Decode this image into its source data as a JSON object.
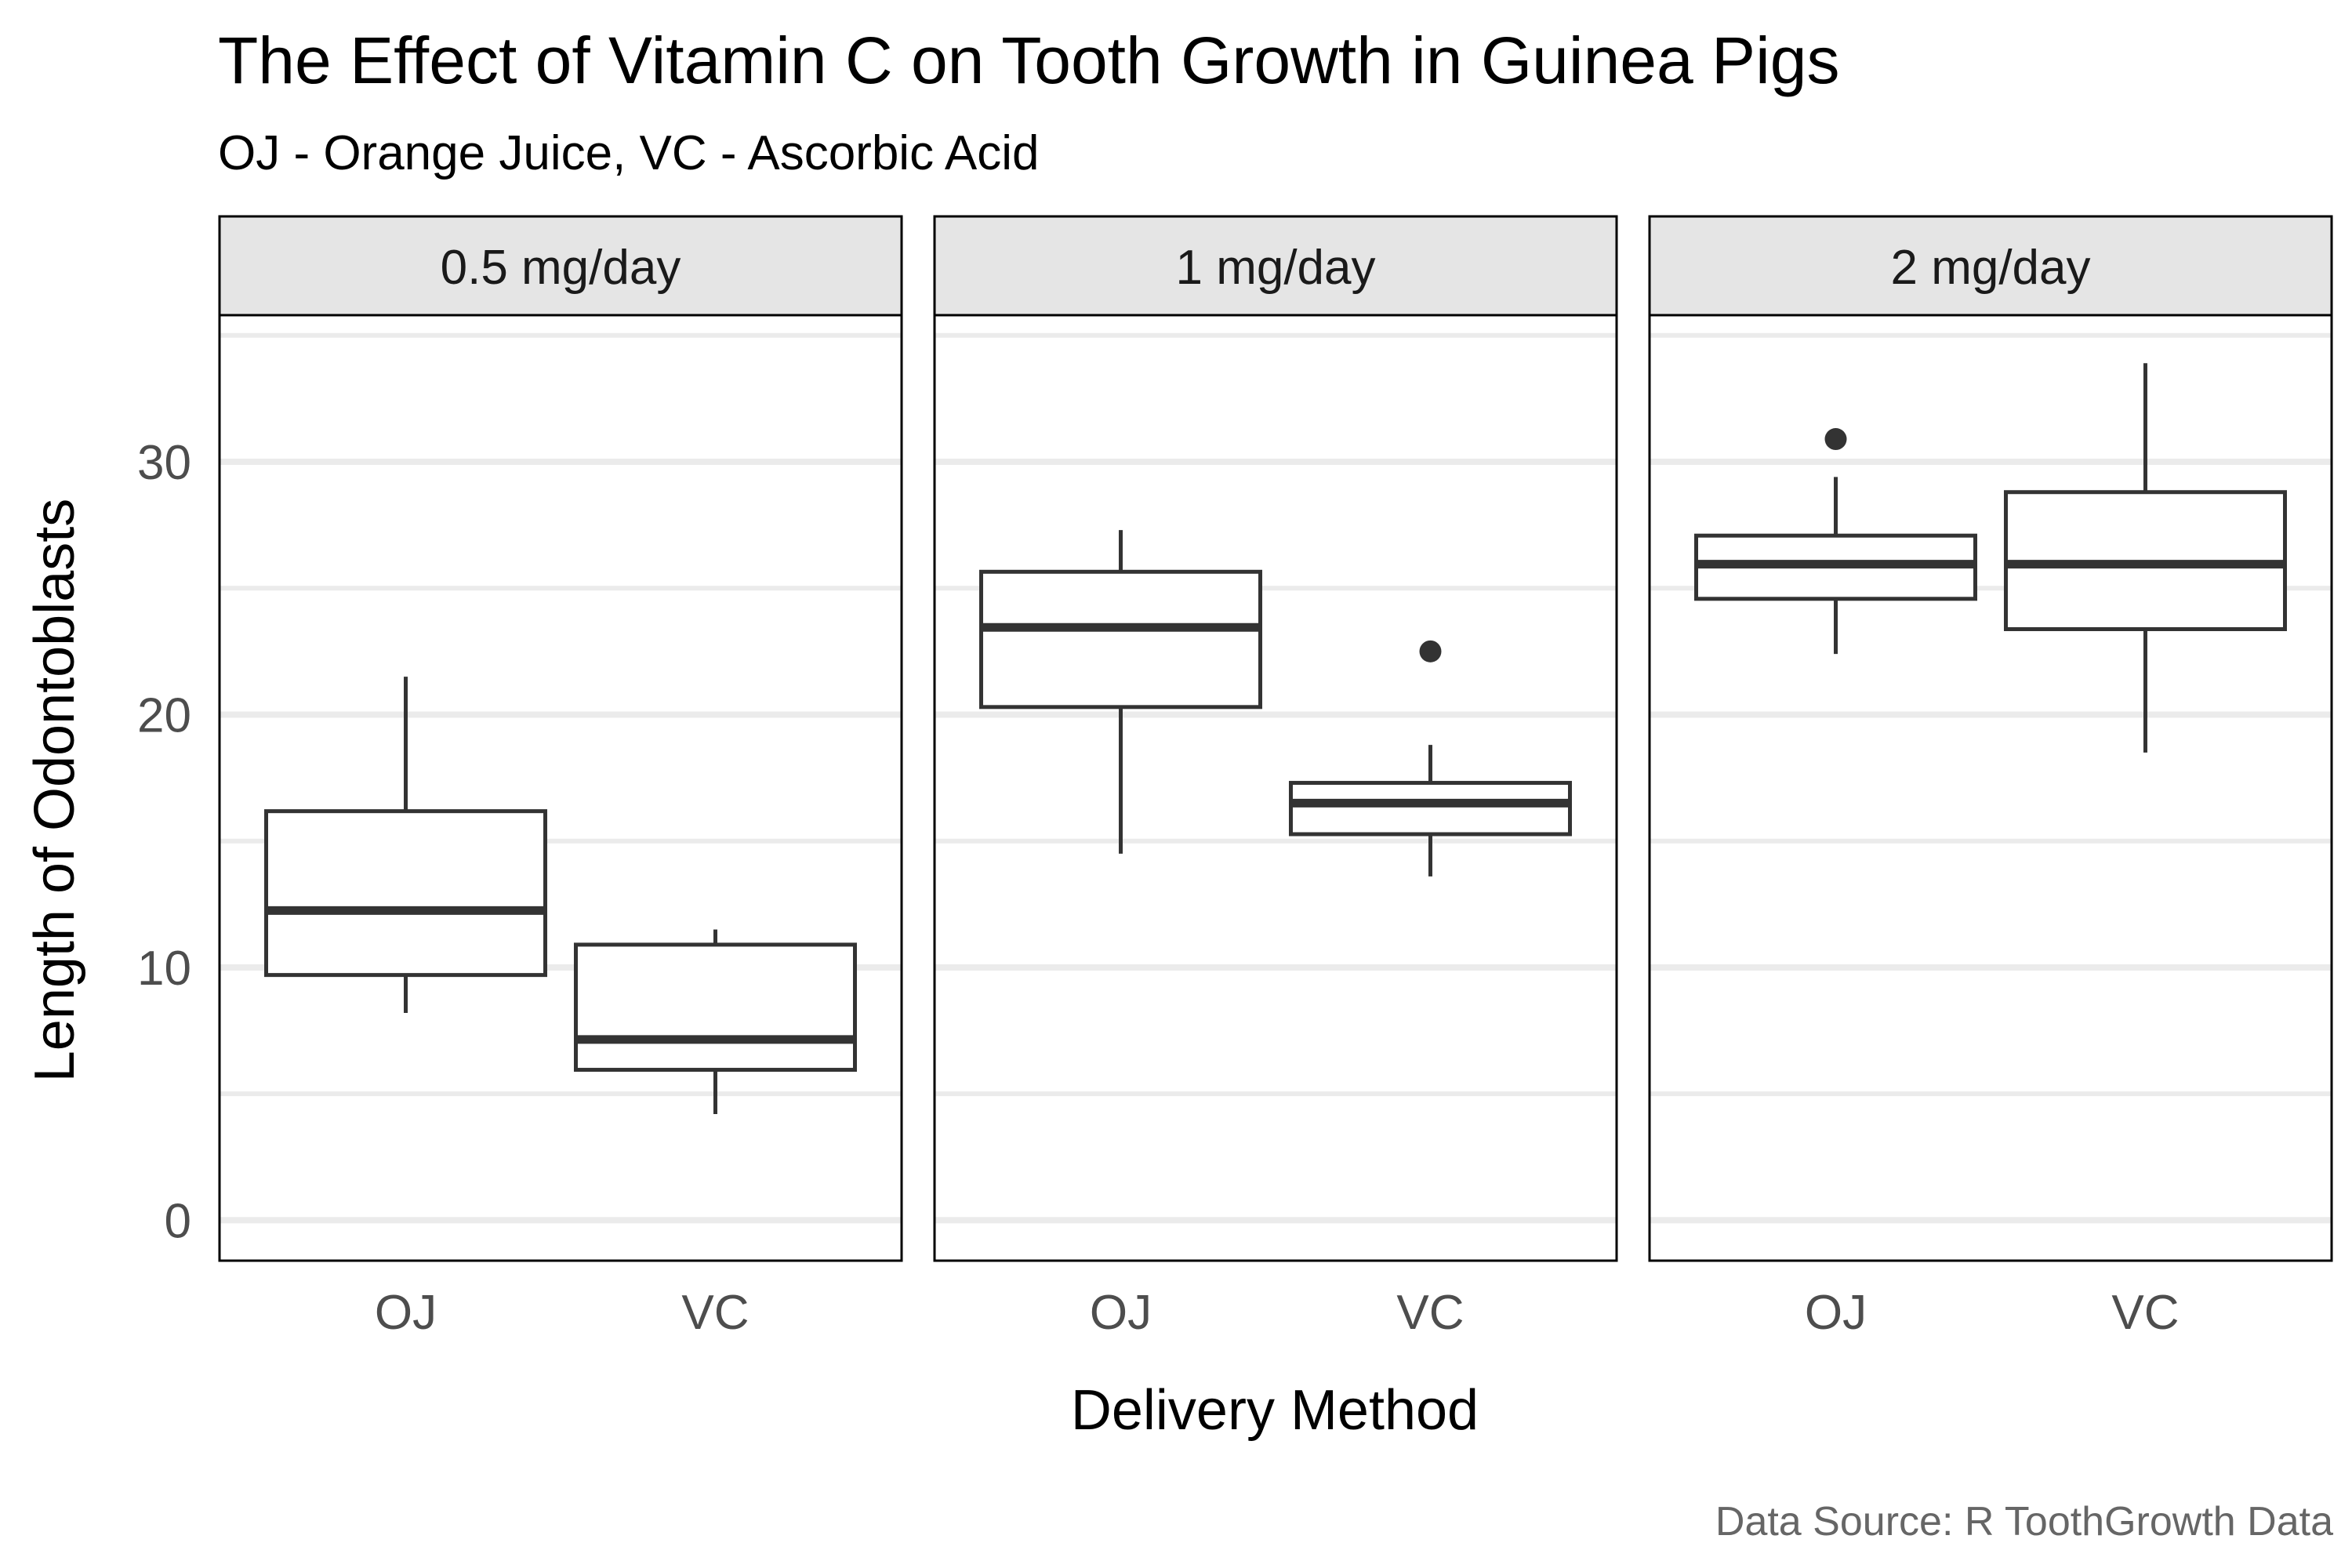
{
  "chart_data": {
    "type": "boxplot",
    "title": "The Effect of Vitamin C on Tooth Growth in Guinea Pigs",
    "subtitle": "OJ - Orange Juice, VC - Ascorbic Acid",
    "caption": "Data Source: R ToothGrowth Data",
    "xlabel": "Delivery Method",
    "ylabel": "Length of Odontoblasts",
    "ylim": [
      -1.6,
      35.8
    ],
    "yticks": [
      0,
      10,
      20,
      30
    ],
    "categories": [
      "OJ",
      "VC"
    ],
    "grid": "horizontal",
    "panels": [
      {
        "label": "0.5 mg/day",
        "boxes": [
          {
            "category": "OJ",
            "whisker_low": 8.2,
            "q1": 9.7,
            "median": 12.25,
            "q3": 16.18,
            "whisker_high": 21.5,
            "outliers": []
          },
          {
            "category": "VC",
            "whisker_low": 4.2,
            "q1": 5.95,
            "median": 7.15,
            "q3": 10.9,
            "whisker_high": 11.5,
            "outliers": []
          }
        ]
      },
      {
        "label": "1 mg/day",
        "boxes": [
          {
            "category": "OJ",
            "whisker_low": 14.5,
            "q1": 20.3,
            "median": 23.45,
            "q3": 25.65,
            "whisker_high": 27.3,
            "outliers": []
          },
          {
            "category": "VC",
            "whisker_low": 13.6,
            "q1": 15.27,
            "median": 16.5,
            "q3": 17.3,
            "whisker_high": 18.8,
            "outliers": [
              22.5
            ]
          }
        ]
      },
      {
        "label": "2 mg/day",
        "boxes": [
          {
            "category": "OJ",
            "whisker_low": 22.4,
            "q1": 24.58,
            "median": 25.95,
            "q3": 27.08,
            "whisker_high": 29.4,
            "outliers": [
              30.9
            ]
          },
          {
            "category": "VC",
            "whisker_low": 18.5,
            "q1": 23.38,
            "median": 25.95,
            "q3": 28.8,
            "whisker_high": 33.9,
            "outliers": []
          }
        ]
      }
    ]
  }
}
